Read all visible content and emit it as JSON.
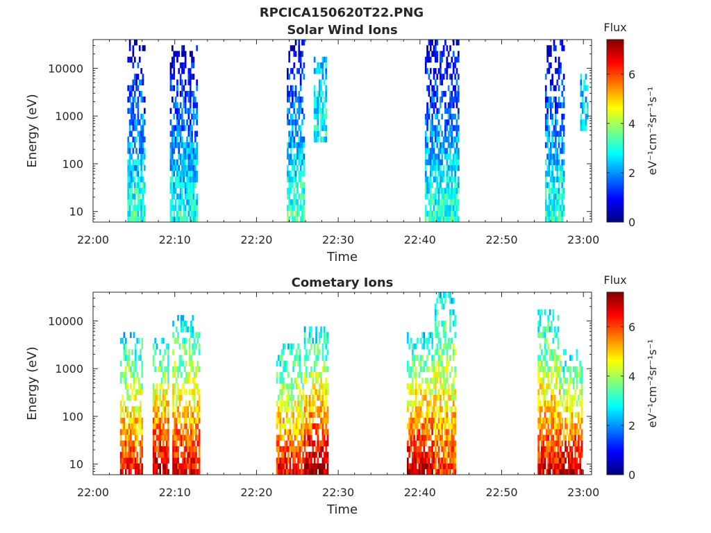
{
  "title": "RPCICA150620T22.PNG",
  "colormap": [
    "#00007f",
    "#0000ff",
    "#007fff",
    "#00ffff",
    "#7fff7f",
    "#ffff00",
    "#ff7f00",
    "#ff0000",
    "#7f0000"
  ],
  "chart_data": [
    {
      "type": "heatmap",
      "title": "Solar Wind Ions",
      "xlabel": "Time",
      "ylabel": "Energy (eV)",
      "y_scale": "log",
      "ylim": [
        6,
        40000
      ],
      "xlim": [
        "22:00",
        "23:01"
      ],
      "x_ticks": [
        "22:00",
        "22:10",
        "22:20",
        "22:30",
        "22:40",
        "22:50",
        "23:00"
      ],
      "y_ticks": [
        "10",
        "100",
        "1000",
        "10000"
      ],
      "colorbar": {
        "title": "Flux",
        "label": "eV⁻¹cm⁻²sr⁻¹s⁻¹",
        "range": [
          0,
          7.4
        ],
        "ticks": [
          "0",
          "2",
          "4",
          "6"
        ]
      },
      "bursts": [
        {
          "t_start": "22:04.2",
          "t_end": "22:06.3",
          "e_min": 6,
          "e_max": 35000,
          "flux_low_energy": 3.2,
          "flux_high_energy": 0.6
        },
        {
          "t_start": "22:09.4",
          "t_end": "22:12.7",
          "e_min": 6,
          "e_max": 30000,
          "flux_low_energy": 3.0,
          "flux_high_energy": 0.6
        },
        {
          "t_start": "22:23.7",
          "t_end": "22:25.8",
          "e_min": 6,
          "e_max": 35000,
          "flux_low_energy": 3.4,
          "flux_high_energy": 0.6
        },
        {
          "t_start": "22:27.0",
          "t_end": "22:28.4",
          "e_min": 300,
          "e_max": 14000,
          "flux_low_energy": 2.8,
          "flux_high_energy": 2.4
        },
        {
          "t_start": "22:40.6",
          "t_end": "22:44.8",
          "e_min": 6,
          "e_max": 38000,
          "flux_low_energy": 3.2,
          "flux_high_energy": 0.6
        },
        {
          "t_start": "22:55.3",
          "t_end": "22:57.7",
          "e_min": 6,
          "e_max": 35000,
          "flux_low_energy": 3.2,
          "flux_high_energy": 0.6
        },
        {
          "t_start": "22:59.6",
          "t_end": "23:00.6",
          "e_min": 500,
          "e_max": 8000,
          "flux_low_energy": 2.6,
          "flux_high_energy": 2.2
        }
      ]
    },
    {
      "type": "heatmap",
      "title": "Cometary Ions",
      "xlabel": "Time",
      "ylabel": "Energy (eV)",
      "y_scale": "log",
      "ylim": [
        6,
        40000
      ],
      "xlim": [
        "22:00",
        "23:01"
      ],
      "x_ticks": [
        "22:00",
        "22:10",
        "22:20",
        "22:30",
        "22:40",
        "22:50",
        "23:00"
      ],
      "y_ticks": [
        "10",
        "100",
        "1000",
        "10000"
      ],
      "colorbar": {
        "title": "Flux",
        "label": "eV⁻¹cm⁻²sr⁻¹s⁻¹",
        "range": [
          0,
          7.4
        ],
        "ticks": [
          "0",
          "2",
          "4",
          "6"
        ]
      },
      "bursts": [
        {
          "t_start": "22:03.3",
          "t_end": "22:06.0",
          "e_min": 6,
          "e_max": 4500,
          "flux_low_energy": 6.4,
          "flux_high_energy": 2.6
        },
        {
          "t_start": "22:07.3",
          "t_end": "22:09.2",
          "e_min": 6,
          "e_max": 4000,
          "flux_low_energy": 7.0,
          "flux_high_energy": 2.6
        },
        {
          "t_start": "22:09.7",
          "t_end": "22:12.9",
          "e_min": 6,
          "e_max": 11000,
          "flux_low_energy": 6.6,
          "flux_high_energy": 2.6
        },
        {
          "t_start": "22:22.4",
          "t_end": "22:25.7",
          "e_min": 6,
          "e_max": 3000,
          "flux_low_energy": 6.4,
          "flux_high_energy": 2.6
        },
        {
          "t_start": "22:25.8",
          "t_end": "22:28.6",
          "e_min": 6,
          "e_max": 6000,
          "flux_low_energy": 7.2,
          "flux_high_energy": 2.6
        },
        {
          "t_start": "22:38.4",
          "t_end": "22:41.8",
          "e_min": 6,
          "e_max": 5000,
          "flux_low_energy": 7.0,
          "flux_high_energy": 2.6
        },
        {
          "t_start": "22:41.8",
          "t_end": "22:44.4",
          "e_min": 6,
          "e_max": 33000,
          "flux_low_energy": 6.0,
          "flux_high_energy": 2.6
        },
        {
          "t_start": "22:54.4",
          "t_end": "22:57.1",
          "e_min": 6,
          "e_max": 16000,
          "flux_low_energy": 6.6,
          "flux_high_energy": 2.6
        },
        {
          "t_start": "22:57.1",
          "t_end": "22:59.9",
          "e_min": 6,
          "e_max": 2000,
          "flux_low_energy": 7.0,
          "flux_high_energy": 2.6
        }
      ]
    }
  ]
}
